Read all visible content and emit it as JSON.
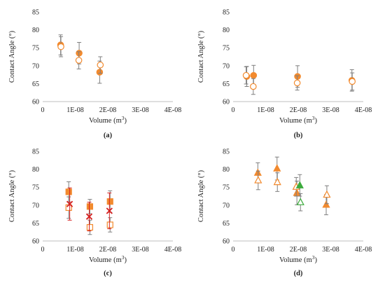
{
  "colors": {
    "axis": "#bfbfbf",
    "error_bar": "#7f7f7f",
    "orange": "#f28a2e",
    "red": "#d62020",
    "green": "#3cab3c"
  },
  "chart_data": [
    {
      "type": "scatter",
      "panel_label": "(a)",
      "xlabel": "Volume (m",
      "xlabel_sup": "3",
      "xlabel_end": ")",
      "ylabel": "Contact Angle (°)",
      "xlim": [
        0,
        4e-08
      ],
      "ylim": [
        60,
        85
      ],
      "x_ticks": [
        "0",
        "1E-08",
        "2E-08",
        "3E-08",
        "4E-08"
      ],
      "y_ticks": [
        "60",
        "65",
        "70",
        "75",
        "80",
        "85"
      ],
      "series": [
        {
          "marker": "circle",
          "fill": "filled",
          "color": "orange",
          "points": [
            {
              "x": 5.5e-09,
              "y": 75.8,
              "err": 2.8
            },
            {
              "x": 1.12e-08,
              "y": 73.5,
              "err": 3.0
            },
            {
              "x": 1.75e-08,
              "y": 68.2,
              "err": 3.1
            }
          ]
        },
        {
          "marker": "circle",
          "fill": "open",
          "color": "orange",
          "points": [
            {
              "x": 5.6e-09,
              "y": 75.3,
              "err": 2.8
            },
            {
              "x": 1.11e-08,
              "y": 71.5,
              "err": 2.4
            },
            {
              "x": 1.77e-08,
              "y": 70.2,
              "err": 2.3
            }
          ]
        }
      ]
    },
    {
      "type": "scatter",
      "panel_label": "(b)",
      "xlabel": "Volume (m",
      "xlabel_sup": "3",
      "xlabel_end": ")",
      "ylabel": "Contact Angle (°)",
      "xlim": [
        0,
        4e-08
      ],
      "ylim": [
        60,
        85
      ],
      "x_ticks": [
        "0",
        "1E-08",
        "2E-08",
        "3E-08",
        "4E-08"
      ],
      "y_ticks": [
        "60",
        "65",
        "70",
        "75",
        "80",
        "85"
      ],
      "series": [
        {
          "marker": "circle",
          "fill": "filled",
          "color": "orange",
          "points": [
            {
              "x": 4.2e-09,
              "y": 67.0,
              "err": 2.8
            },
            {
              "x": 6.3e-09,
              "y": 67.3,
              "err": 2.8
            },
            {
              "x": 1.98e-08,
              "y": 67.0,
              "err": 3.0
            },
            {
              "x": 3.65e-08,
              "y": 65.9,
              "err": 3.0
            }
          ]
        },
        {
          "marker": "circle",
          "fill": "open",
          "color": "orange",
          "points": [
            {
              "x": 4e-09,
              "y": 67.3,
              "err": 2.4
            },
            {
              "x": 6.2e-09,
              "y": 64.2,
              "err": 2.2
            },
            {
              "x": 1.97e-08,
              "y": 65.2,
              "err": 2.0
            },
            {
              "x": 3.66e-08,
              "y": 65.6,
              "err": 2.4
            }
          ]
        }
      ]
    },
    {
      "type": "scatter",
      "panel_label": "(c)",
      "xlabel": "Volume (m",
      "xlabel_sup": "3",
      "xlabel_end": ")",
      "ylabel": "Contact Angle (°)",
      "xlim": [
        0,
        4e-08
      ],
      "ylim": [
        60,
        85
      ],
      "x_ticks": [
        "0",
        "1E-08",
        "2E-08",
        "3E-08",
        "4E-08"
      ],
      "y_ticks": [
        "60",
        "65",
        "70",
        "75",
        "80",
        "85"
      ],
      "series": [
        {
          "marker": "square",
          "fill": "filled",
          "color": "orange",
          "points": [
            {
              "x": 8e-09,
              "y": 73.7,
              "err": 2.8
            },
            {
              "x": 1.45e-08,
              "y": 69.6,
              "err": 2.0
            },
            {
              "x": 2.07e-08,
              "y": 71.0,
              "err": 3.0
            }
          ]
        },
        {
          "marker": "square",
          "fill": "open",
          "color": "orange",
          "points": [
            {
              "x": 8e-09,
              "y": 69.3,
              "err": 3.0
            },
            {
              "x": 1.45e-08,
              "y": 63.8,
              "err": 2.0
            },
            {
              "x": 2.07e-08,
              "y": 64.5,
              "err": 2.0
            }
          ]
        },
        {
          "marker": "x",
          "fill": "filled",
          "color": "red",
          "points": [
            {
              "x": 8.3e-09,
              "y": 70.3,
              "err": 4.5
            },
            {
              "x": 1.43e-08,
              "y": 66.8,
              "err": 4.0
            },
            {
              "x": 2.05e-08,
              "y": 68.4,
              "err": 5.0
            }
          ]
        }
      ]
    },
    {
      "type": "scatter",
      "panel_label": "(d)",
      "xlabel": "Volume (m",
      "xlabel_sup": "3",
      "xlabel_end": ")",
      "ylabel": "Contact Angle (°)",
      "xlim": [
        0,
        4e-08
      ],
      "ylim": [
        60,
        85
      ],
      "x_ticks": [
        "0",
        "1E-08",
        "2E-08",
        "3E-08",
        "4E-08"
      ],
      "y_ticks": [
        "60",
        "65",
        "70",
        "75",
        "80",
        "85"
      ],
      "series": [
        {
          "marker": "triangle",
          "fill": "filled",
          "color": "orange",
          "points": [
            {
              "x": 7.6e-09,
              "y": 79.0,
              "err": 2.8
            },
            {
              "x": 1.35e-08,
              "y": 80.2,
              "err": 3.2
            },
            {
              "x": 1.96e-08,
              "y": 73.4,
              "err": 3.3
            },
            {
              "x": 2.86e-08,
              "y": 70.1,
              "err": 2.8
            }
          ]
        },
        {
          "marker": "triangle",
          "fill": "open",
          "color": "orange",
          "points": [
            {
              "x": 7.7e-09,
              "y": 76.9,
              "err": 2.6
            },
            {
              "x": 1.36e-08,
              "y": 76.4,
              "err": 2.6
            },
            {
              "x": 1.94e-08,
              "y": 75.1,
              "err": 2.6
            },
            {
              "x": 2.88e-08,
              "y": 72.9,
              "err": 2.5
            }
          ]
        },
        {
          "marker": "triangle",
          "fill": "filled",
          "color": "green",
          "points": [
            {
              "x": 2.05e-08,
              "y": 75.5,
              "err": 3.0
            }
          ]
        },
        {
          "marker": "triangle",
          "fill": "open",
          "color": "green",
          "points": [
            {
              "x": 2.07e-08,
              "y": 70.8,
              "err": 2.4
            }
          ]
        }
      ]
    }
  ]
}
